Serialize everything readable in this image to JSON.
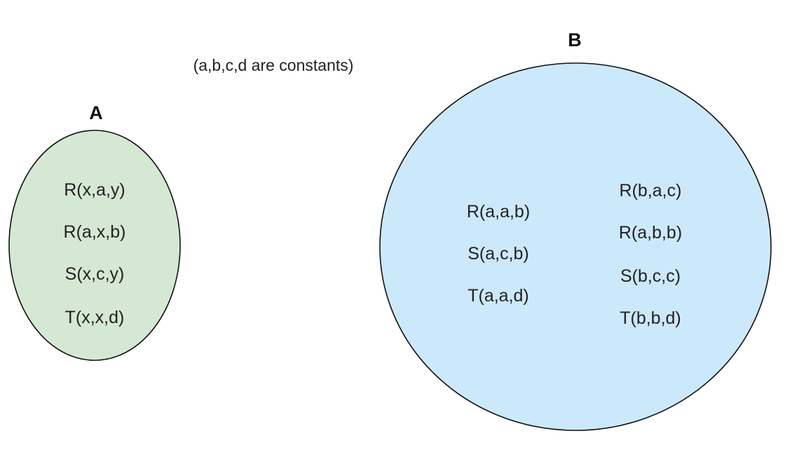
{
  "note": "(a,b,c,d are constants)",
  "colors": {
    "set_a_fill": "#d5e8d4",
    "set_b_fill": "#cce9fb",
    "outline": "#111111",
    "text": "#222222"
  },
  "set_a": {
    "label": "A",
    "atoms": [
      "R(x,a,y)",
      "R(a,x,b)",
      "S(x,c,y)",
      "T(x,x,d)"
    ]
  },
  "set_b": {
    "label": "B",
    "left_atoms": [
      "R(a,a,b)",
      "S(a,c,b)",
      "T(a,a,d)"
    ],
    "right_atoms": [
      "R(b,a,c)",
      "R(a,b,b)",
      "S(b,c,c)",
      "T(b,b,d)"
    ]
  }
}
